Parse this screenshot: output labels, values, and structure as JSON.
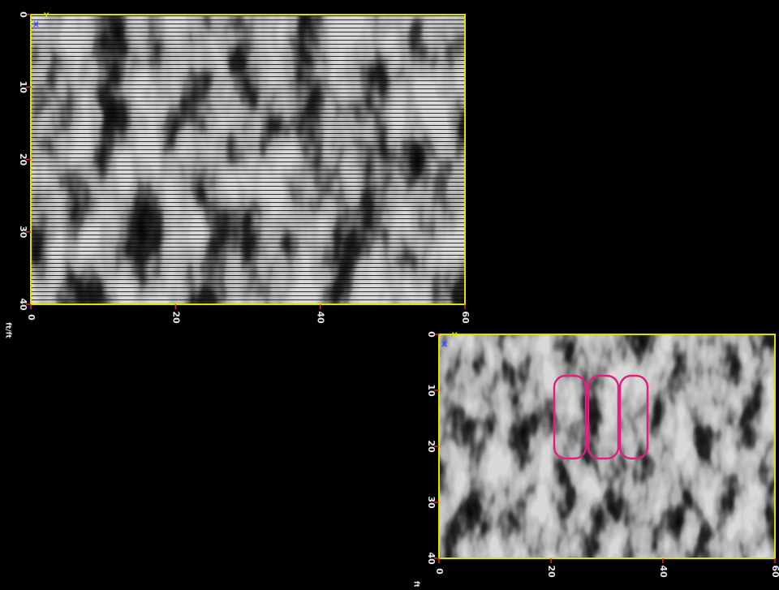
{
  "panels": [
    {
      "yticks": [
        0,
        10,
        20,
        30,
        40
      ],
      "xticks": [
        0,
        20,
        40,
        60
      ],
      "unit": "ft/ft",
      "axis_labels": [
        "Y",
        "X"
      ]
    },
    {
      "yticks": [
        0,
        10,
        20,
        30,
        40
      ],
      "xticks": [
        0,
        20,
        40,
        60
      ],
      "unit": "ft",
      "axis_labels": [
        "Y",
        "X"
      ]
    }
  ]
}
